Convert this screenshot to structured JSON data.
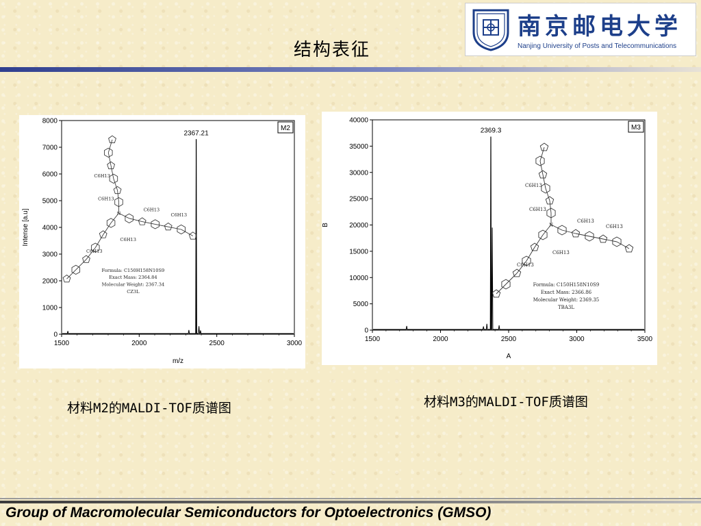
{
  "slide": {
    "title": "结构表征",
    "logo": {
      "cn_name": "南京邮电大学",
      "en_name": "Nanjing University of Posts and Telecommunications"
    },
    "footer": "Group of Macromolecular Semiconductors for Optoelectronics (GMSO)",
    "caption_left": "材料M2的MALDI-TOF质谱图",
    "caption_right": "材料M3的MALDI-TOF质谱图",
    "colors": {
      "rule": "#2f3f8f",
      "logo_blue": "#1d3f8a",
      "background": "#f6ecc9"
    }
  },
  "chart_data": [
    {
      "type": "line",
      "series_label": "M2",
      "peak_label": "2367.21",
      "xlabel": "m/z",
      "ylabel": "Intense [a.u]",
      "xlim": [
        1500,
        3000
      ],
      "ylim": [
        0,
        8000
      ],
      "xticks": [
        1500,
        2000,
        2500,
        3000
      ],
      "yticks": [
        0,
        1000,
        2000,
        3000,
        4000,
        5000,
        6000,
        7000,
        8000
      ],
      "peak": {
        "x": 2367.21,
        "y": 7300
      },
      "minor_peaks": [
        {
          "x": 1540,
          "y": 120
        },
        {
          "x": 2320,
          "y": 160
        },
        {
          "x": 2385,
          "y": 300
        },
        {
          "x": 2395,
          "y": 140
        }
      ],
      "molecule_text": {
        "formula": "Formula: C150H158N10S9",
        "exact_mass": "Exact Mass: 2364.84",
        "molecular_weight": "Molecular Weight: 2367.34",
        "name": "CZ3L",
        "substituents": [
          "C6H13",
          "C6H13",
          "C6H13",
          "C6H13",
          "C6H13",
          "C6H13"
        ]
      }
    },
    {
      "type": "line",
      "series_label": "M3",
      "peak_label": "2369.3",
      "xlabel": "A",
      "ylabel": "B",
      "xlim": [
        1500,
        3500
      ],
      "ylim": [
        0,
        40000
      ],
      "xticks": [
        1500,
        2000,
        2500,
        3000,
        3500
      ],
      "yticks": [
        0,
        5000,
        10000,
        15000,
        20000,
        25000,
        30000,
        35000,
        40000
      ],
      "peak": {
        "x": 2369.3,
        "y": 36800
      },
      "minor_peaks": [
        {
          "x": 2380,
          "y": 19500
        },
        {
          "x": 1752,
          "y": 800
        },
        {
          "x": 2315,
          "y": 700
        },
        {
          "x": 2340,
          "y": 1200
        },
        {
          "x": 2430,
          "y": 900
        }
      ],
      "molecule_text": {
        "formula": "Formula: C150H158N10S9",
        "exact_mass": "Exact Mass: 2366.86",
        "molecular_weight": "Molecular Weight: 2369.35",
        "name": "TBA3L",
        "substituents": [
          "C6H13",
          "C6H13",
          "C6H13",
          "C6H13",
          "C6H13",
          "C6H13"
        ]
      }
    }
  ]
}
